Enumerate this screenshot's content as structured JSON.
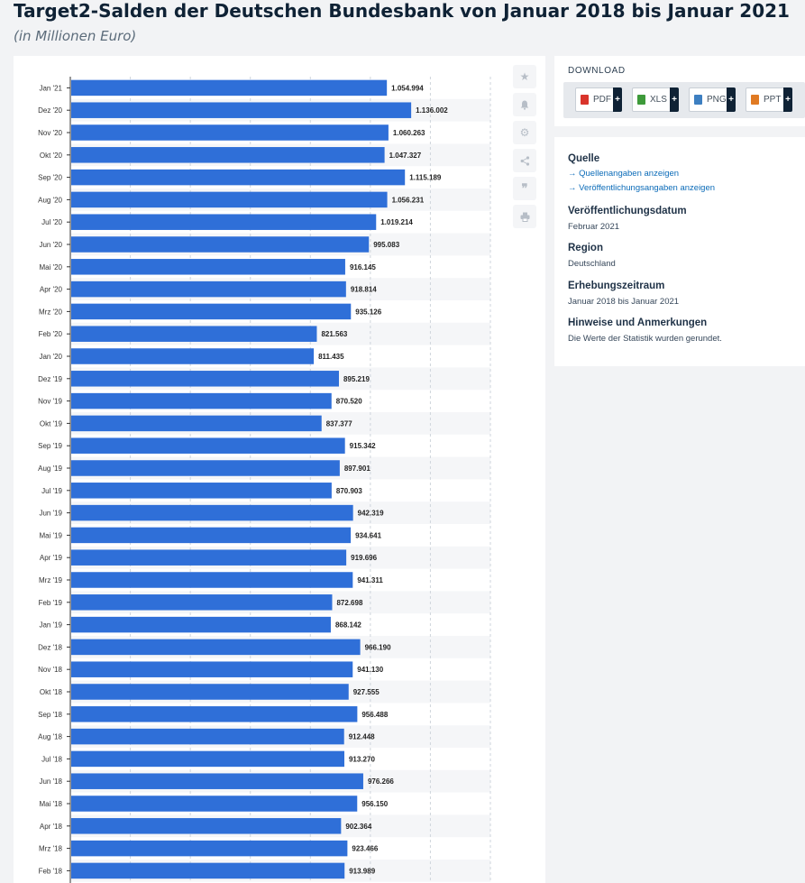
{
  "header": {
    "title": "Target2-Salden der Deutschen Bundesbank von Januar 2018 bis Januar 2021",
    "subtitle": "(in Millionen Euro)"
  },
  "toolbar": {
    "icons": [
      "star-icon",
      "bell-icon",
      "gear-icon",
      "share-icon",
      "quote-icon",
      "print-icon"
    ]
  },
  "download": {
    "title": "DOWNLOAD",
    "buttons": [
      {
        "label": "PDF",
        "icon": "pdf-icon",
        "color": "#d9342b"
      },
      {
        "label": "XLS",
        "icon": "xls-icon",
        "color": "#3e9a3a"
      },
      {
        "label": "PNG",
        "icon": "png-icon",
        "color": "#3d7fc1"
      },
      {
        "label": "PPT",
        "icon": "ppt-icon",
        "color": "#e07a23"
      }
    ],
    "plus": "+"
  },
  "info": {
    "source_head": "Quelle",
    "source_link": "→ Quellenangaben anzeigen",
    "publication_link": "→ Veröffentlichungsangaben anzeigen",
    "pubdate_head": "Veröffentlichungsdatum",
    "pubdate": "Februar 2021",
    "region_head": "Region",
    "region": "Deutschland",
    "period_head": "Erhebungszeitraum",
    "period": "Januar 2018 bis Januar 2021",
    "notes_head": "Hinweise und Anmerkungen",
    "notes": "Die Werte der Statistik wurden gerundet."
  },
  "colors": {
    "bar": "#2f6fd8",
    "accent": "#0b6bb8"
  },
  "chart_data": {
    "type": "bar",
    "orientation": "horizontal",
    "categories": [
      "Jan '21",
      "Dez '20",
      "Nov '20",
      "Okt '20",
      "Sep '20",
      "Aug '20",
      "Jul '20",
      "Jun '20",
      "Mai '20",
      "Apr '20",
      "Mrz '20",
      "Feb '20",
      "Jan '20",
      "Dez '19",
      "Nov '19",
      "Okt '19",
      "Sep '19",
      "Aug '19",
      "Jul '19",
      "Jun '19",
      "Mai '19",
      "Apr '19",
      "Mrz '19",
      "Feb '19",
      "Jan '19",
      "Dez '18",
      "Nov '18",
      "Okt '18",
      "Sep '18",
      "Aug '18",
      "Jul '18",
      "Jun '18",
      "Mai '18",
      "Apr '18",
      "Mrz '18",
      "Feb '18"
    ],
    "values": [
      1054994,
      1136002,
      1060263,
      1047327,
      1115189,
      1056231,
      1019214,
      995083,
      916145,
      918814,
      935126,
      821563,
      811435,
      895219,
      870520,
      837377,
      915342,
      897901,
      870903,
      942319,
      934641,
      919696,
      941311,
      872698,
      868142,
      966190,
      941130,
      927555,
      956488,
      912448,
      913270,
      976266,
      956150,
      902364,
      923466,
      913989
    ],
    "value_labels": [
      "1.054.994",
      "1.136.002",
      "1.060.263",
      "1.047.327",
      "1.115.189",
      "1.056.231",
      "1.019.214",
      "995.083",
      "916.145",
      "918.814",
      "935.126",
      "821.563",
      "811.435",
      "895.219",
      "870.520",
      "837.377",
      "915.342",
      "897.901",
      "870.903",
      "942.319",
      "934.641",
      "919.696",
      "941.311",
      "872.698",
      "868.142",
      "966.190",
      "941.130",
      "927.555",
      "956.488",
      "912.448",
      "913.270",
      "976.266",
      "956.150",
      "902.364",
      "923.466",
      "913.989"
    ],
    "title": "Target2-Salden der Deutschen Bundesbank von Januar 2018 bis Januar 2021",
    "ylabel": "",
    "xlim": [
      0,
      1400000
    ],
    "grid": true,
    "gridline_step": 200000
  }
}
